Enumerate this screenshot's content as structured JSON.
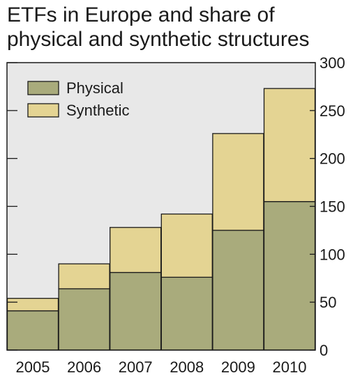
{
  "chart_data": {
    "type": "bar",
    "stacked": true,
    "title": "ETFs in Europe and share of physical and synthetic structures",
    "categories": [
      "2005",
      "2006",
      "2007",
      "2008",
      "2009",
      "2010"
    ],
    "series": [
      {
        "name": "Physical",
        "values": [
          41,
          64,
          81,
          76,
          125,
          155
        ],
        "color": "#a9ab7c"
      },
      {
        "name": "Synthetic",
        "values": [
          13,
          26,
          47,
          66,
          101,
          118
        ],
        "color": "#e4d493"
      }
    ],
    "ylim": [
      0,
      300
    ],
    "yticks": [
      0,
      50,
      100,
      150,
      200,
      250,
      300
    ],
    "y_axis_side": "right",
    "grid": false,
    "plot_background": "#e8e8e8",
    "legend_position": "top-left"
  }
}
